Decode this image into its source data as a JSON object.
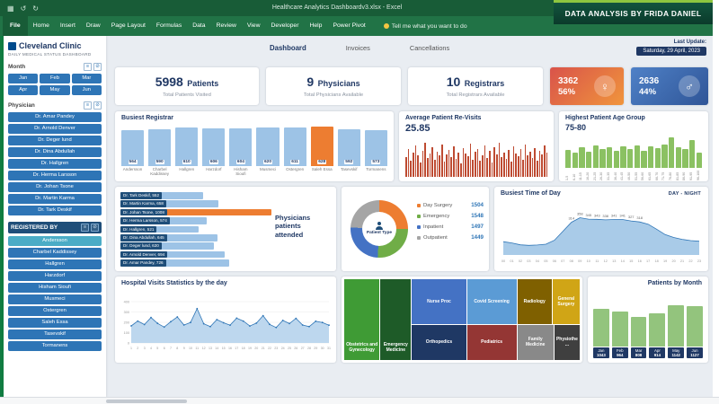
{
  "window": {
    "title": "Healthcare Analytics Dashboardv3.xlsx - Excel",
    "banner": "DATA ANALYSIS BY FRIDA DANIEL"
  },
  "ribbon": {
    "tabs": [
      "File",
      "Home",
      "Insert",
      "Draw",
      "Page Layout",
      "Formulas",
      "Data",
      "Review",
      "View",
      "Developer",
      "Help",
      "Power Pivot"
    ],
    "tell_me": "Tell me what you want to do"
  },
  "sidebar": {
    "brand": {
      "name": "Cleveland Clinic",
      "subtitle": "DAILY MEDICAL STATUS DASHBOARD"
    },
    "slicers": [
      {
        "label": "Month",
        "style": "plain",
        "columns": 3,
        "items": [
          "Jan",
          "Feb",
          "Mar",
          "Apr",
          "May",
          "Jun"
        ]
      },
      {
        "label": "Physician",
        "style": "plain",
        "columns": 1,
        "items": [
          "Dr. Amar Pandey",
          "Dr. Arnold Denver",
          "Dr. Deger lund",
          "Dr. Dina Abdullah",
          "Dr. Hallgren",
          "Dr. Herma Larsson",
          "Dr. Johan Tsone",
          "Dr. Martin Karma",
          "Dr. Tark Deskif"
        ]
      },
      {
        "label": "REGISTERED BY",
        "style": "dark",
        "columns": 1,
        "items": [
          "Andersson",
          "Charbel Kaddissey",
          "Hallgren",
          "Harzdorf",
          "Hisham Sioufi",
          "Musmeci",
          "Ostergren",
          "Saleh Essa",
          "Tasevskif",
          "Tormanens"
        ]
      }
    ]
  },
  "nav": {
    "tabs": [
      "Dashboard",
      "Invoices",
      "Cancellations"
    ],
    "active_tab": "Dashboard",
    "last_update_label": "Last Update:",
    "last_update_value": "Saturday, 29 April, 2023"
  },
  "kpis": [
    {
      "value": "5998",
      "unit": "Patients",
      "subtitle": "Total Patients Visited"
    },
    {
      "value": "9",
      "unit": "Physicians",
      "subtitle": "Total Physicians Available"
    },
    {
      "value": "10",
      "unit": "Registrars",
      "subtitle": "Total Registrars Available"
    }
  ],
  "gender": [
    {
      "count": "3362",
      "percent": "56%",
      "symbol": "♀",
      "name": "female"
    },
    {
      "count": "2636",
      "percent": "44%",
      "symbol": "♂",
      "name": "male"
    }
  ],
  "charts": {
    "busiest_registrar": {
      "type": "bar",
      "title": "Busiest Registrar",
      "categories": [
        "Andersson",
        "Charbel Kaddissey",
        "Hallgren",
        "Harzdorf",
        "Hisham Sioufi",
        "Musmeci",
        "Ostergren",
        "Saleh Essa",
        "Tasevskif",
        "Tormanens"
      ],
      "values": [
        564,
        590,
        610,
        606,
        604,
        620,
        611,
        628,
        592,
        573
      ],
      "highlight": "Saleh Essa",
      "bar_color": "#9DC3E6",
      "highlight_color": "#ED7D31"
    },
    "avg_revisits": {
      "type": "bar",
      "title": "Average Patient Re-Visits",
      "value": "25.85",
      "bar_color": "#BE4B32",
      "values": [
        22,
        31,
        18,
        27,
        35,
        24,
        16,
        29,
        38,
        21,
        26,
        33,
        19,
        28,
        24,
        36,
        17,
        25,
        30,
        22,
        34,
        20,
        27,
        15,
        32,
        26,
        23,
        37,
        19,
        28,
        31,
        18,
        24,
        35,
        21,
        29,
        16,
        33,
        25,
        38,
        22,
        27,
        20,
        30,
        17,
        34,
        26,
        23,
        31,
        19,
        36,
        24,
        28,
        21,
        32,
        18,
        29,
        25,
        35,
        27
      ]
    },
    "age_group": {
      "type": "bar",
      "title": "Highest Patient Age Group",
      "value": "75-80",
      "bar_color": "#8BC162",
      "categories": [
        "1-5",
        "6-10",
        "11-15",
        "16-20",
        "21-25",
        "26-30",
        "31-35",
        "36-40",
        "41-45",
        "46-50",
        "51-55",
        "56-60",
        "61-65",
        "66-70",
        "71-75",
        "76-80",
        "81-85",
        "86-90",
        "91-95",
        "96-100"
      ],
      "values": [
        250,
        210,
        290,
        230,
        310,
        260,
        285,
        235,
        300,
        265,
        320,
        245,
        305,
        280,
        330,
        430,
        295,
        260,
        390,
        220
      ]
    },
    "physicians": {
      "type": "hbar",
      "title": "Physicians patients attended",
      "bar_color": "#9DC3E6",
      "highlight_color": "#ED7D31",
      "items": [
        {
          "name": "Dr. Tark Deskif",
          "value": 552
        },
        {
          "name": "Dr. Martin Karma",
          "value": 658
        },
        {
          "name": "Dr. Johan Tsone",
          "value": 1008,
          "highlight": true
        },
        {
          "name": "Dr. Herma Larsson",
          "value": 574
        },
        {
          "name": "Dr. Hallgren",
          "value": 521
        },
        {
          "name": "Dr. Dina Abdullah",
          "value": 645
        },
        {
          "name": "Dr. Deger lund",
          "value": 620
        },
        {
          "name": "Dr. Arnold Denver",
          "value": 694
        },
        {
          "name": "Dr. Amar Pandey",
          "value": 726
        }
      ]
    },
    "patient_type": {
      "type": "donut",
      "center_label": "Patient Type",
      "segments": [
        {
          "label": "Day Surgery",
          "value": 1504,
          "color": "#ED7D31"
        },
        {
          "label": "Emergency",
          "value": 1548,
          "color": "#70AD47"
        },
        {
          "label": "Inpatient",
          "value": 1497,
          "color": "#4472C4"
        },
        {
          "label": "Outpatient",
          "value": 1449,
          "color": "#A5A5A5"
        }
      ]
    },
    "busiest_time": {
      "type": "area",
      "title": "Busiest Time of Day",
      "corner_label": "DAY - NIGHT",
      "hours": [
        "00",
        "01",
        "02",
        "03",
        "04",
        "05",
        "06",
        "07",
        "08",
        "09",
        "10",
        "11",
        "12",
        "13",
        "14",
        "15",
        "16",
        "17",
        "18",
        "19",
        "20",
        "21",
        "22",
        "23"
      ],
      "values": [
        128,
        116,
        98,
        92,
        96,
        104,
        142,
        228,
        314,
        358,
        345,
        343,
        338,
        341,
        341,
        327,
        318,
        296,
        248,
        196,
        168,
        150,
        138,
        132
      ]
    },
    "hospital_visits": {
      "type": "area",
      "title": "Hospital Visits Statistics by the day",
      "days": [
        "1",
        "2",
        "3",
        "4",
        "5",
        "6",
        "7",
        "8",
        "9",
        "10",
        "11",
        "12",
        "13",
        "14",
        "15",
        "16",
        "17",
        "18",
        "19",
        "20",
        "21",
        "22",
        "23",
        "24",
        "25",
        "26",
        "27",
        "28",
        "29",
        "30",
        "31"
      ],
      "values": [
        165,
        212,
        178,
        246,
        190,
        154,
        206,
        252,
        174,
        198,
        332,
        186,
        158,
        226,
        196,
        172,
        240,
        212,
        164,
        192,
        264,
        180,
        150,
        218,
        188,
        238,
        174,
        158,
        210,
        198,
        172
      ],
      "y_ticks": [
        0,
        100,
        200,
        300,
        400
      ]
    },
    "treemap": {
      "type": "treemap",
      "items": [
        {
          "label": "Obstetrics and Gynecology",
          "color": "#3F9B35"
        },
        {
          "label": "Emergency Medicine",
          "color": "#1E5B28"
        },
        {
          "label": "Nurse Proc",
          "color": "#4472C4"
        },
        {
          "label": "Orthopedics",
          "color": "#1F3864"
        },
        {
          "label": "Covid Screening",
          "color": "#5B9BD5"
        },
        {
          "label": "Pediatrics",
          "color": "#943634"
        },
        {
          "label": "Radiology",
          "color": "#7F6000"
        },
        {
          "label": "General Surgery",
          "color": "#D0A516"
        },
        {
          "label": "Family Medicine",
          "color": "#898989"
        },
        {
          "label": "Physiothe...",
          "color": "#3F3F3F"
        }
      ]
    },
    "patients_by_month": {
      "type": "bar",
      "title": "Patients by Month",
      "bar_color": "#93C47D",
      "items": [
        {
          "month": "Jan",
          "value": 1043
        },
        {
          "month": "Feb",
          "value": 964
        },
        {
          "month": "Mar",
          "value": 808
        },
        {
          "month": "Apr",
          "value": 914
        },
        {
          "month": "May",
          "value": 1142
        },
        {
          "month": "Jun",
          "value": 1127
        }
      ]
    }
  }
}
